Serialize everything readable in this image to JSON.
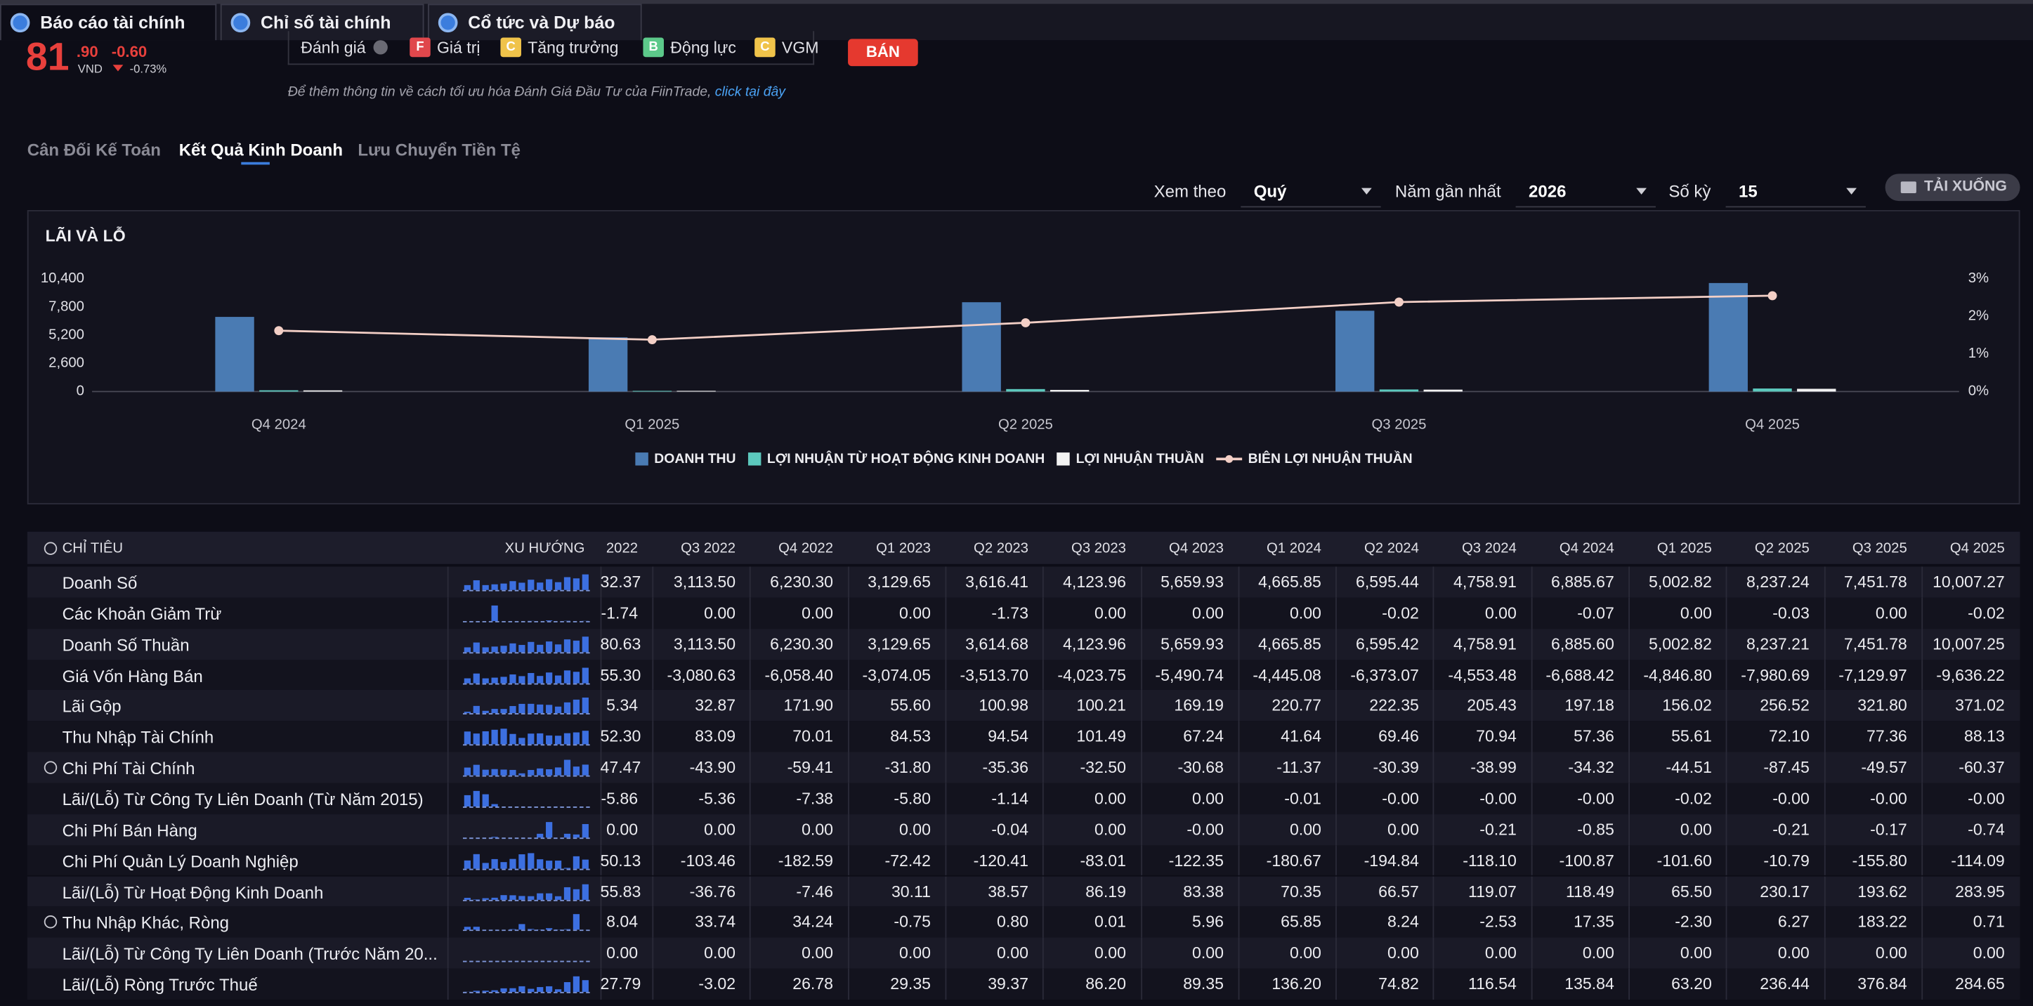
{
  "tabs": [
    "Báo cáo tài chính",
    "Chỉ số tài chính",
    "Cổ tức và Dự báo"
  ],
  "quote": {
    "price": "81",
    "price_decimal": ".90",
    "currency": "VND",
    "change": "-0.60",
    "change_percent": "-0.73%"
  },
  "rating": {
    "label": "Đánh giá",
    "items": [
      {
        "grade": "F",
        "name": "Giá trị",
        "color": "#e0474c"
      },
      {
        "grade": "C",
        "name": "Tăng trưởng",
        "color": "#f0c34a"
      },
      {
        "grade": "B",
        "name": "Động lực",
        "color": "#5cc98a"
      },
      {
        "grade": "C",
        "name": "VGM",
        "color": "#f0c34a"
      }
    ]
  },
  "sell_button": "BÁN",
  "note": {
    "text": "Để thêm thông tin về cách tối ưu hóa Đánh Giá Đầu Tư của FiinTrade, ",
    "link": "click tại đây"
  },
  "report_tabs": [
    "Cân Đối Kế Toán",
    "Kết Quả Kinh Doanh",
    "Lưu Chuyển Tiền Tệ"
  ],
  "active_report_tab": 1,
  "filters": [
    {
      "label": "Xem theo",
      "value": "Quý"
    },
    {
      "label": "Năm gần nhất",
      "value": "2026"
    },
    {
      "label": "Số kỳ",
      "value": "15"
    }
  ],
  "download_button": "TẢI XUỐNG",
  "chart_data": {
    "type": "bar",
    "title": "LÃI VÀ LỖ",
    "categories": [
      "Q4 2024",
      "Q1 2025",
      "Q2 2025",
      "Q3 2025",
      "Q4 2025"
    ],
    "series": [
      {
        "name": "DOANH THU",
        "color": "#4a7bb3",
        "values": [
          6885.67,
          5002.82,
          8237.24,
          7451.78,
          10007.27
        ]
      },
      {
        "name": "LỢI NHUẬN TỪ HOẠT ĐỘNG KINH DOANH",
        "color": "#5cc8bd",
        "values": [
          118.49,
          65.5,
          230.17,
          193.62,
          283.95
        ]
      },
      {
        "name": "LỢI NHUẬN THUẦN",
        "color": "#f2f2f2",
        "values": [
          110,
          68,
          152,
          179,
          255
        ]
      },
      {
        "name": "BIÊN LỢI NHUẬN THUẦN",
        "type": "line",
        "axis": "y2",
        "color": "#f3cfc6",
        "values": [
          1.62,
          1.38,
          1.83,
          2.38,
          2.55
        ]
      }
    ],
    "ylim": [
      0,
      10400
    ],
    "yticks": [
      0,
      {
        "value": 2600,
        "label": "2,600"
      },
      {
        "value": 5200,
        "label": "5,200"
      },
      {
        "value": 7800,
        "label": "7,800"
      },
      {
        "value": 10400,
        "label": "10,400"
      }
    ],
    "y2lim": [
      0,
      3
    ],
    "y2ticks": [
      {
        "value": 0,
        "label": "0%"
      },
      {
        "value": 1,
        "label": "1%"
      },
      {
        "value": 2,
        "label": "2%"
      },
      {
        "value": 3,
        "label": "3%"
      }
    ]
  },
  "table": {
    "columns": [
      "CHỈ TIÊU",
      "XU HƯỚNG",
      "2022",
      "Q3 2022",
      "Q4 2022",
      "Q1 2023",
      "Q2 2023",
      "Q3 2023",
      "Q4 2023",
      "Q1 2024",
      "Q2 2024",
      "Q3 2024",
      "Q4 2024",
      "Q1 2025",
      "Q2 2025",
      "Q3 2025",
      "Q4 2025"
    ],
    "rows": [
      {
        "label": "Doanh Số",
        "expandable": false,
        "values": [
          "32.37",
          "3,113.50",
          "6,230.30",
          "3,129.65",
          "3,616.41",
          "4,123.96",
          "5,659.93",
          "4,665.85",
          "6,595.44",
          "4,758.91",
          "6,885.67",
          "5,002.82",
          "8,237.24",
          "7,451.78",
          "10,007.27"
        ]
      },
      {
        "label": "Các Khoản Giảm Trừ",
        "expandable": false,
        "values": [
          "-1.74",
          "0.00",
          "0.00",
          "0.00",
          "-1.73",
          "0.00",
          "0.00",
          "0.00",
          "-0.02",
          "0.00",
          "-0.07",
          "0.00",
          "-0.03",
          "0.00",
          "-0.02"
        ]
      },
      {
        "label": "Doanh Số Thuần",
        "expandable": false,
        "values": [
          "80.63",
          "3,113.50",
          "6,230.30",
          "3,129.65",
          "3,614.68",
          "4,123.96",
          "5,659.93",
          "4,665.85",
          "6,595.42",
          "4,758.91",
          "6,885.60",
          "5,002.82",
          "8,237.21",
          "7,451.78",
          "10,007.25"
        ]
      },
      {
        "label": "Giá Vốn Hàng Bán",
        "expandable": false,
        "values": [
          "55.30",
          "-3,080.63",
          "-6,058.40",
          "-3,074.05",
          "-3,513.70",
          "-4,023.75",
          "-5,490.74",
          "-4,445.08",
          "-6,373.07",
          "-4,553.48",
          "-6,688.42",
          "-4,846.80",
          "-7,980.69",
          "-7,129.97",
          "-9,636.22"
        ]
      },
      {
        "label": "Lãi Gộp",
        "expandable": false,
        "values": [
          "5.34",
          "32.87",
          "171.90",
          "55.60",
          "100.98",
          "100.21",
          "169.19",
          "220.77",
          "222.35",
          "205.43",
          "197.18",
          "156.02",
          "256.52",
          "321.80",
          "371.02"
        ]
      },
      {
        "label": "Thu Nhập Tài Chính",
        "expandable": false,
        "values": [
          "52.30",
          "83.09",
          "70.01",
          "84.53",
          "94.54",
          "101.49",
          "67.24",
          "41.64",
          "69.46",
          "70.94",
          "57.36",
          "55.61",
          "72.10",
          "77.36",
          "88.13"
        ]
      },
      {
        "label": "Chi Phí Tài Chính",
        "expandable": true,
        "values": [
          "47.47",
          "-43.90",
          "-59.41",
          "-31.80",
          "-35.36",
          "-32.50",
          "-30.68",
          "-11.37",
          "-30.39",
          "-38.99",
          "-34.32",
          "-44.51",
          "-87.45",
          "-49.57",
          "-60.37"
        ]
      },
      {
        "label": "Lãi/(Lỗ) Từ Công Ty Liên Doanh (Từ Năm 2015)",
        "expandable": false,
        "values": [
          "-5.86",
          "-5.36",
          "-7.38",
          "-5.80",
          "-1.14",
          "0.00",
          "0.00",
          "-0.01",
          "-0.00",
          "-0.00",
          "-0.00",
          "-0.02",
          "-0.00",
          "-0.00",
          "-0.00"
        ]
      },
      {
        "label": "Chi Phí Bán Hàng",
        "expandable": false,
        "values": [
          "0.00",
          "0.00",
          "0.00",
          "0.00",
          "-0.04",
          "0.00",
          "-0.00",
          "0.00",
          "0.00",
          "-0.21",
          "-0.85",
          "0.00",
          "-0.21",
          "-0.17",
          "-0.74"
        ]
      },
      {
        "label": "Chi Phí Quản Lý Doanh Nghiệp",
        "expandable": false,
        "values": [
          "50.13",
          "-103.46",
          "-182.59",
          "-72.42",
          "-120.41",
          "-83.01",
          "-122.35",
          "-180.67",
          "-194.84",
          "-118.10",
          "-100.87",
          "-101.60",
          "-10.79",
          "-155.80",
          "-114.09"
        ]
      },
      {
        "label": "Lãi/(Lỗ) Từ Hoạt Động Kinh Doanh",
        "expandable": false,
        "values": [
          "55.83",
          "-36.76",
          "-7.46",
          "30.11",
          "38.57",
          "86.19",
          "83.38",
          "70.35",
          "66.57",
          "119.07",
          "118.49",
          "65.50",
          "230.17",
          "193.62",
          "283.95"
        ]
      },
      {
        "label": "Thu Nhập Khác, Ròng",
        "expandable": true,
        "values": [
          "8.04",
          "33.74",
          "34.24",
          "-0.75",
          "0.80",
          "0.01",
          "5.96",
          "65.85",
          "8.24",
          "-2.53",
          "17.35",
          "-2.30",
          "6.27",
          "183.22",
          "0.71"
        ]
      },
      {
        "label": "Lãi/(Lỗ) Từ Công Ty Liên Doanh (Trước Năm 20...",
        "expandable": false,
        "values": [
          "0.00",
          "0.00",
          "0.00",
          "0.00",
          "0.00",
          "0.00",
          "0.00",
          "0.00",
          "0.00",
          "0.00",
          "0.00",
          "0.00",
          "0.00",
          "0.00",
          "0.00"
        ]
      },
      {
        "label": "Lãi/(Lỗ) Ròng Trước Thuế",
        "expandable": false,
        "values": [
          "27.79",
          "-3.02",
          "26.78",
          "29.35",
          "39.37",
          "86.20",
          "89.35",
          "136.20",
          "74.82",
          "116.54",
          "135.84",
          "63.20",
          "236.44",
          "376.84",
          "284.65"
        ]
      }
    ]
  }
}
